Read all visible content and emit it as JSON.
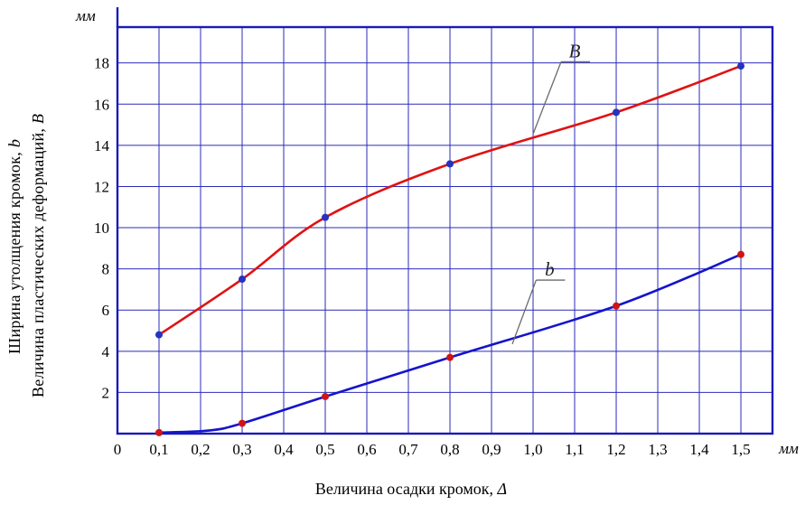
{
  "axes": {
    "y_unit": "мм",
    "x_unit": "мм",
    "x_title": {
      "text": "Величина осадки кромок, ",
      "symbol": "Δ"
    },
    "y_title_outer": {
      "text": "Ширина утолщения кромок, ",
      "symbol": "b"
    },
    "y_title_inner": {
      "text": "Величина пластических деформаций, ",
      "symbol": "В"
    }
  },
  "chart_data": {
    "type": "line",
    "title": "",
    "xlabel": "Величина осадки кромок, Δ (мм)",
    "ylabel": "Ширина утолщения кромок b / Величина пластических деформаций В (мм)",
    "grid": true,
    "x_range": [
      0,
      1.576
    ],
    "y_range": [
      0,
      19.74
    ],
    "x_tick_values": [
      0,
      0.1,
      0.2,
      0.3,
      0.4,
      0.5,
      0.6,
      0.7,
      0.8,
      0.9,
      1.0,
      1.1,
      1.2,
      1.3,
      1.4,
      1.5
    ],
    "x_tick_labels": [
      "0",
      "0,1",
      "0,2",
      "0,3",
      "0,4",
      "0,5",
      "0,6",
      "0,7",
      "0,8",
      "0,9",
      "1,0",
      "1,1",
      "1,2",
      "1,3",
      "1,4",
      "1,5"
    ],
    "y_tick_values": [
      2,
      4,
      6,
      8,
      10,
      12,
      14,
      16,
      18
    ],
    "frame_color": "#1a1ab8",
    "grid_color": "#2b2bb8",
    "series": [
      {
        "name": "B",
        "label": "В",
        "color": "#e01212",
        "marker_color": "#2433c0",
        "x": [
          0.1,
          0.3,
          0.5,
          0.8,
          1.2,
          1.5
        ],
        "y": [
          4.8,
          7.5,
          10.5,
          13.1,
          15.6,
          17.85
        ],
        "label_pos": {
          "x": 1.1,
          "y": 18.45
        },
        "leader_to": {
          "x": 1.0,
          "y": 14.55
        }
      },
      {
        "name": "b",
        "label": "b",
        "color": "#1414cc",
        "marker_color": "#d01414",
        "x": [
          0.1,
          0.3,
          0.5,
          0.8,
          1.2,
          1.5
        ],
        "y": [
          0.05,
          0.5,
          1.8,
          3.7,
          6.2,
          8.7
        ],
        "curve_x": [
          0.1,
          0.22,
          0.3,
          0.5,
          0.8,
          1.2,
          1.5
        ],
        "curve_y": [
          0.05,
          0.15,
          0.5,
          1.8,
          3.7,
          6.2,
          8.7
        ],
        "label_pos": {
          "x": 1.04,
          "y": 7.85
        },
        "leader_to": {
          "x": 0.95,
          "y": 4.35
        }
      }
    ]
  }
}
